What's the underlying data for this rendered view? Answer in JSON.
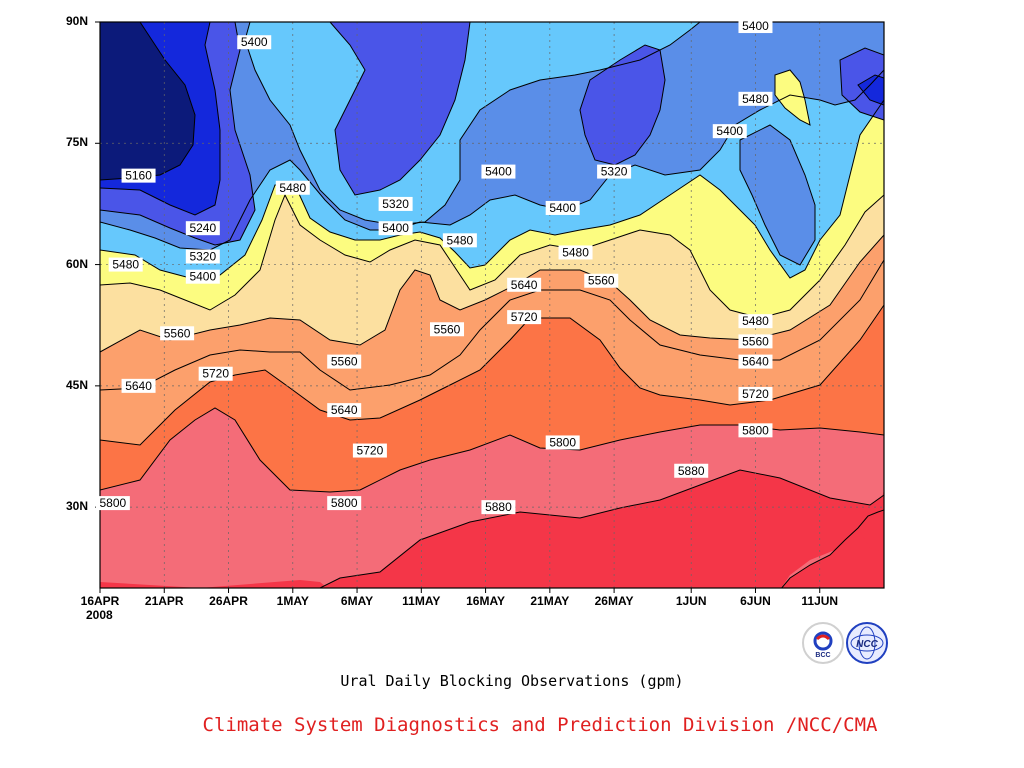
{
  "chart_data": {
    "type": "heatmap",
    "title": "Ural Daily Blocking Observations (gpm)",
    "subtitle": "",
    "xlabel": "",
    "ylabel": "",
    "x_ticks": [
      "16APR",
      "21APR",
      "26APR",
      "1MAY",
      "6MAY",
      "11MAY",
      "16MAY",
      "21MAY",
      "26MAY",
      "1JUN",
      "6JUN",
      "11JUN"
    ],
    "x_year_label": "2008",
    "y_ticks": [
      "90N",
      "75N",
      "60N",
      "45N",
      "30N"
    ],
    "ylim": [
      20,
      90
    ],
    "grid": true,
    "contour_levels": [
      5160,
      5240,
      5320,
      5400,
      5480,
      5560,
      5640,
      5720,
      5800,
      5880
    ],
    "contour_labels": [
      {
        "value": "5400",
        "lat": 87.5,
        "day": 12
      },
      {
        "value": "5160",
        "lat": 71.0,
        "day": 3
      },
      {
        "value": "5240",
        "lat": 64.5,
        "day": 8
      },
      {
        "value": "5320",
        "lat": 61.0,
        "day": 8
      },
      {
        "value": "5400",
        "lat": 58.5,
        "day": 8
      },
      {
        "value": "5480",
        "lat": 60.0,
        "day": 2
      },
      {
        "value": "5480",
        "lat": 69.5,
        "day": 15
      },
      {
        "value": "5320",
        "lat": 67.5,
        "day": 23
      },
      {
        "value": "5400",
        "lat": 64.5,
        "day": 23
      },
      {
        "value": "5480",
        "lat": 63.0,
        "day": 28
      },
      {
        "value": "5400",
        "lat": 71.5,
        "day": 31
      },
      {
        "value": "5400",
        "lat": 67.0,
        "day": 36
      },
      {
        "value": "5320",
        "lat": 71.5,
        "day": 40
      },
      {
        "value": "5480",
        "lat": 61.5,
        "day": 37
      },
      {
        "value": "5640",
        "lat": 57.5,
        "day": 33
      },
      {
        "value": "5560",
        "lat": 58.0,
        "day": 39
      },
      {
        "value": "5720",
        "lat": 53.5,
        "day": 33
      },
      {
        "value": "5560",
        "lat": 51.5,
        "day": 6
      },
      {
        "value": "5560",
        "lat": 48.0,
        "day": 19
      },
      {
        "value": "5560",
        "lat": 52.0,
        "day": 27
      },
      {
        "value": "5640",
        "lat": 45.0,
        "day": 3
      },
      {
        "value": "5720",
        "lat": 46.5,
        "day": 9
      },
      {
        "value": "5640",
        "lat": 42.0,
        "day": 19
      },
      {
        "value": "5720",
        "lat": 37.0,
        "day": 21
      },
      {
        "value": "5800",
        "lat": 38.0,
        "day": 36
      },
      {
        "value": "5800",
        "lat": 30.5,
        "day": 1
      },
      {
        "value": "5800",
        "lat": 30.5,
        "day": 19
      },
      {
        "value": "5880",
        "lat": 30.0,
        "day": 31
      },
      {
        "value": "5880",
        "lat": 34.5,
        "day": 46
      },
      {
        "value": "5400",
        "lat": 89.5,
        "day": 51
      },
      {
        "value": "5480",
        "lat": 80.5,
        "day": 51
      },
      {
        "value": "5400",
        "lat": 76.5,
        "day": 49
      },
      {
        "value": "5480",
        "lat": 53.0,
        "day": 51
      },
      {
        "value": "5560",
        "lat": 50.5,
        "day": 51
      },
      {
        "value": "5640",
        "lat": 48.0,
        "day": 51
      },
      {
        "value": "5720",
        "lat": 44.0,
        "day": 51
      },
      {
        "value": "5800",
        "lat": 39.5,
        "day": 51
      }
    ],
    "colors": [
      "#0c1a7a",
      "#1428dc",
      "#4a55e8",
      "#5a8ee8",
      "#66c8fc",
      "#fcfc80",
      "#fce0a0",
      "#fca06c",
      "#fc7446",
      "#f46c78",
      "#f43648"
    ]
  },
  "footer": {
    "title": "Ural Daily Blocking Observations (gpm)",
    "credit": "Climate System Diagnostics and Prediction Division /NCC/CMA"
  },
  "logos": [
    {
      "name": "bcc-logo",
      "text": "BCC"
    },
    {
      "name": "ncc-logo",
      "text": "NCC"
    }
  ]
}
